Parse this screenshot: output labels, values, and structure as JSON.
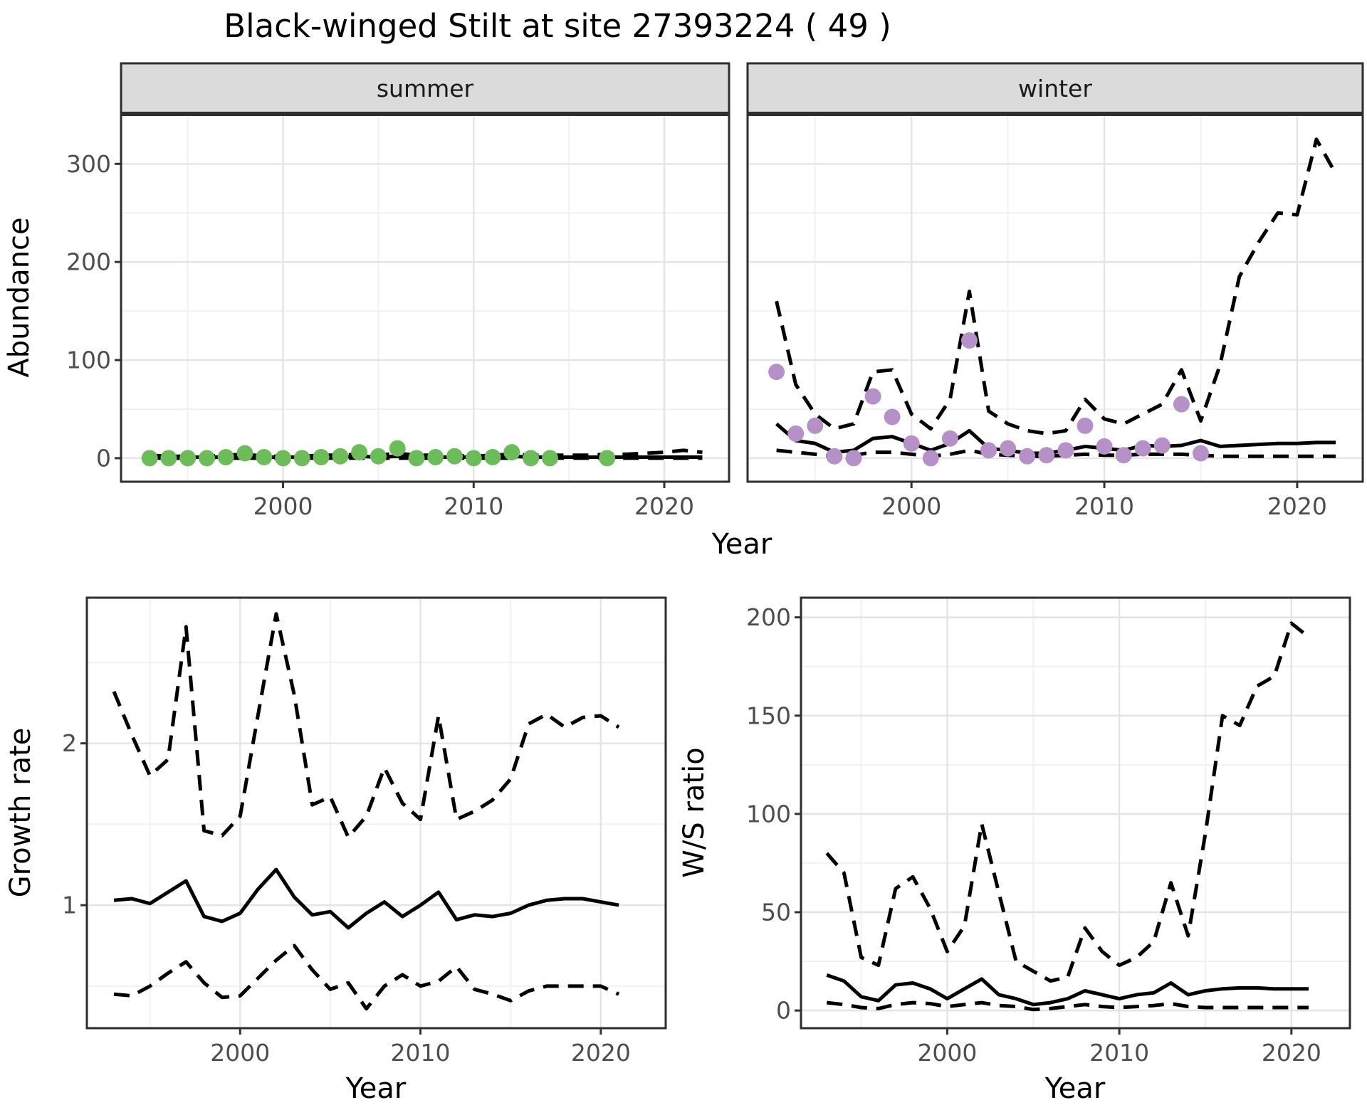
{
  "title": "Black-winged Stilt at site 27393224 ( 49 )",
  "axes": {
    "y_top": "Abundance",
    "x_top": "Year",
    "y_growth": "Growth rate",
    "x_growth": "Year",
    "y_ws": "W/S ratio",
    "x_ws": "Year"
  },
  "colors": {
    "summer_dot": "#6cbc5a",
    "winter_dot": "#b591c8",
    "line": "#000000",
    "strip_bg": "#dbdbdb",
    "strip_border": "#2e2e2e",
    "panel_border": "#2d2d2d",
    "grid_major": "#e4e4e4",
    "grid_minor": "#f1f1f1",
    "tick_mark": "#333333",
    "tick_text": "#4d4d4d"
  },
  "chart_data": [
    {
      "id": "summer",
      "type": "line",
      "facet_label": "summer",
      "xlim": [
        1991.5,
        2023.4
      ],
      "ylim": [
        -24,
        351
      ],
      "x_major": [
        2000,
        2010,
        2020
      ],
      "x_minor": [
        1995,
        2005,
        2015
      ],
      "y_major": [
        0,
        100,
        200,
        300
      ],
      "y_minor": [
        50,
        150,
        250,
        350
      ],
      "years": [
        1993,
        1994,
        1995,
        1996,
        1997,
        1998,
        1999,
        2000,
        2001,
        2002,
        2003,
        2004,
        2005,
        2006,
        2007,
        2008,
        2009,
        2010,
        2011,
        2012,
        2013,
        2014,
        2015,
        2016,
        2017,
        2018,
        2019,
        2020,
        2021,
        2022
      ],
      "series": [
        {
          "name": "median",
          "style": "solid",
          "values": [
            1,
            1,
            1,
            1,
            1,
            2,
            1,
            1,
            1,
            1,
            1,
            2,
            1,
            2,
            1,
            1,
            1,
            1,
            1,
            2,
            1,
            1,
            1,
            1,
            1,
            1,
            1,
            1,
            1,
            1
          ]
        },
        {
          "name": "upper_ci",
          "style": "dashed",
          "values": [
            3,
            2,
            2,
            2,
            3,
            4,
            2,
            2,
            2,
            3,
            3,
            4,
            3,
            5,
            3,
            3,
            3,
            2,
            3,
            4,
            3,
            3,
            3,
            3,
            4,
            4,
            5,
            6,
            8,
            6
          ]
        },
        {
          "name": "lower_ci",
          "style": "dashed",
          "values": [
            0,
            0,
            0,
            0,
            0,
            0,
            0,
            0,
            0,
            0,
            0,
            0,
            0,
            0,
            0,
            0,
            0,
            0,
            0,
            0,
            0,
            0,
            0,
            0,
            0,
            0,
            0,
            0,
            0,
            0
          ]
        }
      ],
      "points": {
        "color_key": "summer_dot",
        "years": [
          1993,
          1994,
          1995,
          1996,
          1997,
          1998,
          1999,
          2000,
          2001,
          2002,
          2003,
          2004,
          2005,
          2006,
          2007,
          2008,
          2009,
          2010,
          2011,
          2012,
          2013,
          2014,
          2017
        ],
        "values": [
          0,
          0,
          0,
          0,
          1,
          5,
          1,
          0,
          0,
          1,
          2,
          6,
          2,
          10,
          0,
          1,
          2,
          0,
          1,
          6,
          0,
          0,
          0
        ]
      }
    },
    {
      "id": "winter",
      "type": "line",
      "facet_label": "winter",
      "xlim": [
        1991.5,
        2023.4
      ],
      "ylim": [
        -24,
        351
      ],
      "x_major": [
        2000,
        2010,
        2020
      ],
      "x_minor": [
        1995,
        2005,
        2015
      ],
      "y_major": [
        0,
        100,
        200,
        300
      ],
      "y_minor": [
        50,
        150,
        250,
        350
      ],
      "years": [
        1993,
        1994,
        1995,
        1996,
        1997,
        1998,
        1999,
        2000,
        2001,
        2002,
        2003,
        2004,
        2005,
        2006,
        2007,
        2008,
        2009,
        2010,
        2011,
        2012,
        2013,
        2014,
        2015,
        2016,
        2017,
        2018,
        2019,
        2020,
        2021,
        2022
      ],
      "series": [
        {
          "name": "median",
          "style": "solid",
          "values": [
            35,
            18,
            15,
            6,
            8,
            20,
            22,
            15,
            8,
            15,
            28,
            10,
            8,
            5,
            5,
            8,
            12,
            10,
            8,
            13,
            12,
            13,
            18,
            12,
            13,
            14,
            15,
            15,
            16,
            16
          ]
        },
        {
          "name": "upper_ci",
          "style": "dashed",
          "values": [
            160,
            75,
            45,
            30,
            35,
            88,
            90,
            45,
            30,
            60,
            170,
            48,
            35,
            28,
            25,
            28,
            60,
            40,
            35,
            45,
            55,
            90,
            38,
            95,
            185,
            220,
            250,
            248,
            325,
            290
          ]
        },
        {
          "name": "lower_ci",
          "style": "dashed",
          "values": [
            8,
            6,
            4,
            2,
            3,
            6,
            6,
            4,
            2,
            4,
            8,
            4,
            3,
            2,
            2,
            3,
            4,
            3,
            3,
            4,
            4,
            4,
            3,
            2,
            2,
            2,
            2,
            2,
            2,
            2
          ]
        }
      ],
      "points": {
        "color_key": "winter_dot",
        "years": [
          1993,
          1994,
          1995,
          1996,
          1997,
          1998,
          1999,
          2000,
          2001,
          2002,
          2003,
          2004,
          2005,
          2006,
          2007,
          2008,
          2009,
          2010,
          2011,
          2012,
          2013,
          2014,
          2015
        ],
        "values": [
          88,
          25,
          33,
          2,
          0,
          63,
          42,
          15,
          0,
          20,
          120,
          8,
          10,
          2,
          3,
          8,
          33,
          12,
          3,
          10,
          13,
          55,
          5
        ]
      }
    },
    {
      "id": "growth",
      "type": "line",
      "facet_label": null,
      "xlim": [
        1991.5,
        2023.6
      ],
      "ylim": [
        0.24,
        2.9
      ],
      "x_major": [
        2000,
        2010,
        2020
      ],
      "x_minor": [
        1995,
        2005,
        2015
      ],
      "y_major": [
        1,
        2
      ],
      "y_minor": [
        0.5,
        1.5,
        2.5
      ],
      "years": [
        1993,
        1994,
        1995,
        1996,
        1997,
        1998,
        1999,
        2000,
        2001,
        2002,
        2003,
        2004,
        2005,
        2006,
        2007,
        2008,
        2009,
        2010,
        2011,
        2012,
        2013,
        2014,
        2015,
        2016,
        2017,
        2018,
        2019,
        2020,
        2021
      ],
      "series": [
        {
          "name": "median",
          "style": "solid",
          "values": [
            1.03,
            1.04,
            1.01,
            1.08,
            1.15,
            0.93,
            0.9,
            0.95,
            1.1,
            1.22,
            1.05,
            0.94,
            0.96,
            0.86,
            0.95,
            1.02,
            0.93,
            1.0,
            1.08,
            0.91,
            0.94,
            0.93,
            0.95,
            1.0,
            1.03,
            1.04,
            1.04,
            1.02,
            1.0
          ]
        },
        {
          "name": "upper_ci",
          "style": "dashed",
          "values": [
            2.32,
            2.05,
            1.8,
            1.9,
            2.72,
            1.46,
            1.43,
            1.55,
            2.18,
            2.8,
            2.3,
            1.62,
            1.67,
            1.42,
            1.55,
            1.85,
            1.63,
            1.53,
            2.17,
            1.53,
            1.58,
            1.65,
            1.78,
            2.12,
            2.18,
            2.1,
            2.16,
            2.17,
            2.1
          ]
        },
        {
          "name": "lower_ci",
          "style": "dashed",
          "values": [
            0.45,
            0.44,
            0.5,
            0.58,
            0.65,
            0.52,
            0.43,
            0.44,
            0.55,
            0.66,
            0.75,
            0.6,
            0.48,
            0.52,
            0.36,
            0.5,
            0.57,
            0.5,
            0.53,
            0.62,
            0.48,
            0.45,
            0.41,
            0.47,
            0.5,
            0.5,
            0.5,
            0.5,
            0.45
          ]
        }
      ],
      "points": null
    },
    {
      "id": "ws",
      "type": "line",
      "facet_label": null,
      "xlim": [
        1991.5,
        2023.4
      ],
      "ylim": [
        -9,
        210
      ],
      "x_major": [
        2000,
        2010,
        2020
      ],
      "x_minor": [
        1995,
        2005,
        2015
      ],
      "y_major": [
        0,
        50,
        100,
        150,
        200
      ],
      "y_minor": [
        25,
        75,
        125,
        175
      ],
      "years": [
        1993,
        1994,
        1995,
        1996,
        1997,
        1998,
        1999,
        2000,
        2001,
        2002,
        2003,
        2004,
        2005,
        2006,
        2007,
        2008,
        2009,
        2010,
        2011,
        2012,
        2013,
        2014,
        2015,
        2016,
        2017,
        2018,
        2019,
        2020,
        2021
      ],
      "series": [
        {
          "name": "median",
          "style": "solid",
          "values": [
            18,
            15,
            7,
            5,
            13,
            14,
            11,
            6,
            11,
            16,
            8,
            6,
            3,
            4,
            6,
            10,
            8,
            6,
            8,
            9,
            14,
            8,
            10,
            11,
            11.5,
            11.5,
            11,
            11,
            11
          ]
        },
        {
          "name": "upper_ci",
          "style": "dashed",
          "values": [
            80,
            70,
            27,
            23,
            62,
            68,
            52,
            30,
            43,
            95,
            60,
            25,
            20,
            15,
            17,
            42,
            30,
            23,
            27,
            35,
            65,
            38,
            90,
            150,
            145,
            165,
            170,
            197,
            190
          ]
        },
        {
          "name": "lower_ci",
          "style": "dashed",
          "values": [
            4,
            3,
            1.5,
            1,
            3,
            4,
            3.5,
            2,
            3,
            4,
            2.5,
            2,
            0.5,
            1,
            2,
            3,
            2,
            1.5,
            2,
            2.5,
            3.5,
            2,
            1.5,
            1.5,
            1.5,
            1.5,
            1.5,
            1.5,
            1.5
          ]
        }
      ],
      "points": null
    }
  ]
}
